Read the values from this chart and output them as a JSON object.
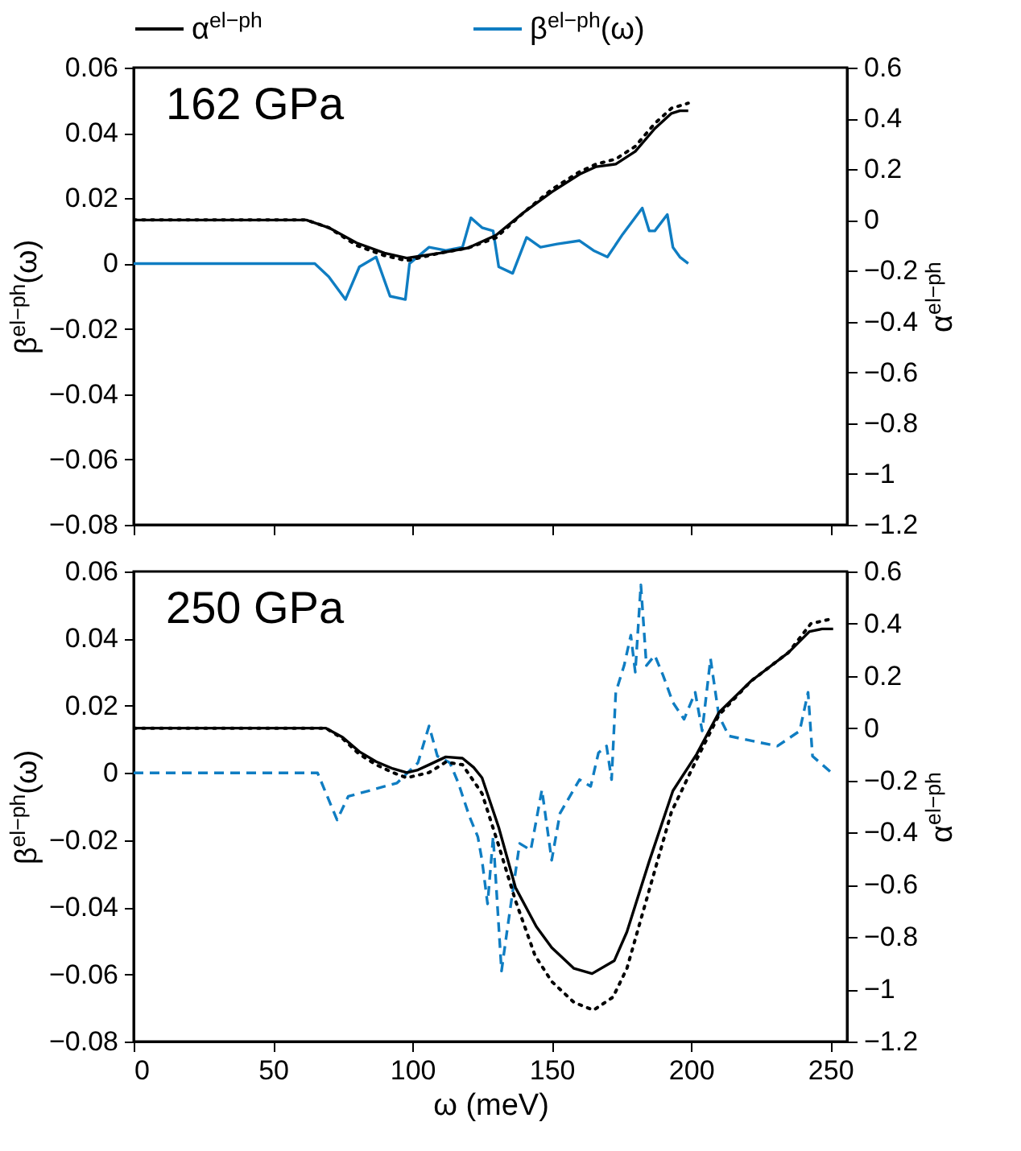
{
  "chart_data": [
    {
      "type": "line",
      "legend": "top",
      "tick_labels": "y",
      "ylabel": "β$^{el−ph}$(ω)",
      "y2label": "α$^{el−ph}$",
      "annotations": [
        "162 GPa"
      ],
      "xlim": [
        0,
        256
      ],
      "xticks": [
        0,
        50,
        100,
        150,
        200,
        250
      ],
      "ylim": [
        -0.08,
        0.06
      ],
      "yticks": [
        -0.08,
        -0.06,
        -0.04,
        -0.02,
        0,
        0.02,
        0.04,
        0.06
      ],
      "y2lim": [
        -1.2,
        0.6
      ],
      "y2ticks": [
        -1.2,
        -1,
        -0.8,
        -0.6,
        -0.4,
        -0.2,
        0,
        0.2,
        0.4,
        0.6
      ],
      "series": [
        {
          "name": "α$^{el−ph}$",
          "color": "#000000",
          "axis": "y2",
          "line_style": "solid",
          "x": [
            0,
            62,
            70,
            80,
            90,
            98,
            110,
            120,
            130,
            140,
            150,
            160,
            166,
            173,
            180,
            187,
            193,
            196,
            199
          ],
          "values": [
            0,
            0,
            -0.03,
            -0.09,
            -0.13,
            -0.15,
            -0.13,
            -0.11,
            -0.06,
            0.03,
            0.11,
            0.18,
            0.21,
            0.22,
            0.27,
            0.36,
            0.42,
            0.43,
            0.43
          ]
        },
        {
          "name": "β$^{el−ph}$(ω)",
          "color": "#0f7dc2",
          "axis": "y",
          "line_style": "solid",
          "x": [
            0,
            65,
            70,
            76,
            81,
            87,
            92,
            97.5,
            99,
            106,
            112,
            118,
            121,
            125,
            129,
            131,
            136,
            141,
            146,
            152,
            160,
            165,
            170,
            175.5,
            182.5,
            185,
            187,
            191.5,
            193.5,
            196,
            199
          ],
          "values": [
            0,
            0,
            -0.004,
            -0.011,
            -0.001,
            0.002,
            -0.01,
            -0.011,
            0,
            0.005,
            0.004,
            0.005,
            0.014,
            0.011,
            0.01,
            -0.001,
            -0.003,
            0.008,
            0.005,
            0.006,
            0.007,
            0.004,
            0.002,
            0.009,
            0.017,
            0.01,
            0.01,
            0.015,
            0.005,
            0.002,
            0
          ]
        },
        {
          "color": "#000000",
          "axis": "y2",
          "line_style": "dotted",
          "x": [
            0,
            62,
            70,
            80,
            90,
            98,
            110,
            120,
            130,
            140,
            150,
            160,
            166,
            173,
            180,
            187,
            193,
            196,
            199
          ],
          "values": [
            0,
            0,
            -0.03,
            -0.1,
            -0.14,
            -0.16,
            -0.13,
            -0.11,
            -0.07,
            0.03,
            0.12,
            0.19,
            0.22,
            0.24,
            0.29,
            0.38,
            0.44,
            0.45,
            0.46
          ]
        }
      ]
    },
    {
      "type": "line",
      "xlabel": "ω (meV)",
      "ylabel": "β$^{el−ph}$(ω)",
      "y2label": "α$^{el−ph}$",
      "annotations": [
        "250 GPa"
      ],
      "xlim": [
        0,
        256
      ],
      "xticks": [
        0,
        50,
        100,
        150,
        200,
        250
      ],
      "ylim": [
        -0.08,
        0.06
      ],
      "yticks": [
        -0.08,
        -0.06,
        -0.04,
        -0.02,
        0,
        0.02,
        0.04,
        0.06
      ],
      "y2lim": [
        -1.2,
        0.6
      ],
      "y2ticks": [
        -1.2,
        -1,
        -0.8,
        -0.6,
        -0.4,
        -0.2,
        0,
        0.2,
        0.4,
        0.6
      ],
      "series": [
        {
          "color": "#000000",
          "axis": "y2",
          "line_style": "solid",
          "x": [
            0,
            69,
            75,
            81,
            87,
            93,
            98,
            102,
            106,
            112,
            118,
            122,
            125,
            131,
            137,
            144.5,
            150,
            158,
            164.5,
            172.5,
            177,
            185,
            193.5,
            202,
            210,
            221.5,
            235,
            242.5,
            247,
            251
          ],
          "values": [
            0,
            0,
            -0.035,
            -0.09,
            -0.128,
            -0.155,
            -0.17,
            -0.16,
            -0.14,
            -0.11,
            -0.115,
            -0.15,
            -0.19,
            -0.38,
            -0.61,
            -0.76,
            -0.84,
            -0.92,
            -0.94,
            -0.89,
            -0.78,
            -0.51,
            -0.24,
            -0.1,
            0.06,
            0.18,
            0.29,
            0.37,
            0.38,
            0.38
          ]
        },
        {
          "color": "#000000",
          "axis": "y2",
          "line_style": "dotted",
          "x": [
            0,
            69,
            75,
            81,
            87,
            93,
            98,
            106,
            112,
            118,
            125,
            131,
            137,
            144,
            150,
            158,
            165,
            172,
            177,
            185,
            193,
            202,
            210,
            221.5,
            235,
            243,
            251
          ],
          "values": [
            0,
            0,
            -0.04,
            -0.1,
            -0.14,
            -0.17,
            -0.19,
            -0.17,
            -0.13,
            -0.14,
            -0.25,
            -0.45,
            -0.66,
            -0.87,
            -0.97,
            -1.05,
            -1.08,
            -1.03,
            -0.92,
            -0.62,
            -0.32,
            -0.12,
            0.05,
            0.18,
            0.29,
            0.4,
            0.42
          ]
        },
        {
          "color": "#0f7dc2",
          "axis": "y",
          "line_style": "dashed",
          "x": [
            0,
            66,
            73,
            77,
            94.5,
            102,
            106,
            109,
            113.5,
            116.5,
            120.5,
            123.5,
            125,
            127,
            129,
            132,
            134,
            138.5,
            142.5,
            146.5,
            150,
            153,
            160,
            164,
            166.8,
            169.7,
            171.5,
            173,
            176,
            178.4,
            180,
            182,
            184,
            187,
            190,
            193.5,
            197.5,
            201.5,
            204,
            207,
            210,
            213.6,
            225,
            231,
            239,
            242,
            243.6,
            250.5
          ],
          "values": [
            0,
            0,
            -0.014,
            -0.007,
            -0.003,
            0.003,
            0.014,
            0.005,
            0.003,
            -0.003,
            -0.013,
            -0.019,
            -0.026,
            -0.039,
            -0.019,
            -0.059,
            -0.047,
            -0.021,
            -0.023,
            -0.005,
            -0.026,
            -0.012,
            -0.002,
            -0.004,
            0.006,
            0.008,
            -0.002,
            0.024,
            0.032,
            0.041,
            0.03,
            0.056,
            0.032,
            0.035,
            0.029,
            0.021,
            0.016,
            0.024,
            0.0125,
            0.034,
            0.017,
            0.011,
            0.009,
            0.008,
            0.0125,
            0.024,
            0.005,
            0
          ]
        }
      ]
    }
  ]
}
